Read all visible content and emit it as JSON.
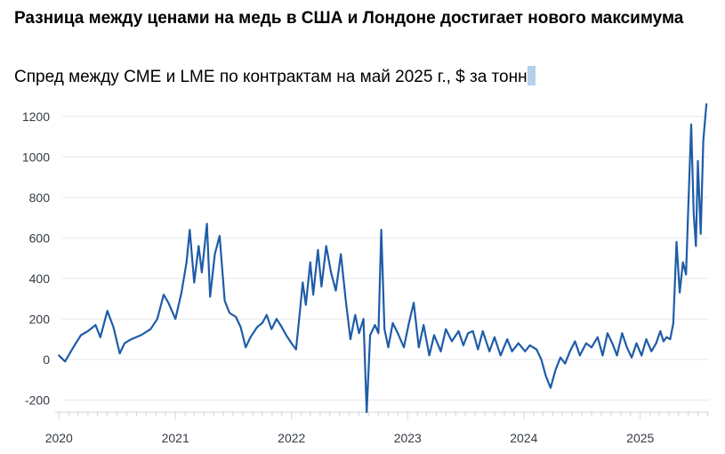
{
  "title": "Разница между ценами на медь в США и Лондоне достигает нового максимума",
  "subtitle": "Спред между CME и LME по контрактам на май 2025 г., $ за тонну",
  "colors": {
    "series": "#1f5ca8",
    "grid": "#e6e8ec",
    "axis": "#cfd5de"
  },
  "chart_data": {
    "type": "line",
    "series": [
      {
        "values": [
          [
            "2020-01-01",
            20
          ],
          [
            "2020-01-20",
            -10
          ],
          [
            "2020-02-15",
            60
          ],
          [
            "2020-03-10",
            120
          ],
          [
            "2020-04-01",
            140
          ],
          [
            "2020-04-25",
            170
          ],
          [
            "2020-05-10",
            110
          ],
          [
            "2020-06-01",
            240
          ],
          [
            "2020-06-20",
            160
          ],
          [
            "2020-07-10",
            30
          ],
          [
            "2020-07-25",
            80
          ],
          [
            "2020-08-15",
            100
          ],
          [
            "2020-09-15",
            120
          ],
          [
            "2020-10-15",
            150
          ],
          [
            "2020-11-05",
            200
          ],
          [
            "2020-11-25",
            320
          ],
          [
            "2020-12-10",
            280
          ],
          [
            "2021-01-01",
            200
          ],
          [
            "2021-01-20",
            330
          ],
          [
            "2021-02-05",
            480
          ],
          [
            "2021-02-15",
            640
          ],
          [
            "2021-03-01",
            380
          ],
          [
            "2021-03-15",
            560
          ],
          [
            "2021-03-25",
            430
          ],
          [
            "2021-04-10",
            670
          ],
          [
            "2021-04-20",
            310
          ],
          [
            "2021-05-05",
            520
          ],
          [
            "2021-05-20",
            610
          ],
          [
            "2021-06-05",
            290
          ],
          [
            "2021-06-20",
            230
          ],
          [
            "2021-07-10",
            210
          ],
          [
            "2021-07-25",
            160
          ],
          [
            "2021-08-10",
            60
          ],
          [
            "2021-08-25",
            110
          ],
          [
            "2021-09-15",
            160
          ],
          [
            "2021-10-01",
            180
          ],
          [
            "2021-10-15",
            220
          ],
          [
            "2021-10-30",
            150
          ],
          [
            "2021-11-15",
            200
          ],
          [
            "2021-12-01",
            160
          ],
          [
            "2021-12-15",
            120
          ],
          [
            "2022-01-01",
            80
          ],
          [
            "2022-01-15",
            50
          ],
          [
            "2022-01-25",
            200
          ],
          [
            "2022-02-05",
            380
          ],
          [
            "2022-02-15",
            270
          ],
          [
            "2022-03-01",
            480
          ],
          [
            "2022-03-10",
            320
          ],
          [
            "2022-03-25",
            540
          ],
          [
            "2022-04-05",
            360
          ],
          [
            "2022-04-20",
            560
          ],
          [
            "2022-05-05",
            430
          ],
          [
            "2022-05-20",
            340
          ],
          [
            "2022-06-05",
            520
          ],
          [
            "2022-06-20",
            300
          ],
          [
            "2022-07-05",
            100
          ],
          [
            "2022-07-20",
            220
          ],
          [
            "2022-08-01",
            130
          ],
          [
            "2022-08-15",
            200
          ],
          [
            "2022-08-25",
            -260
          ],
          [
            "2022-09-05",
            120
          ],
          [
            "2022-09-20",
            170
          ],
          [
            "2022-10-01",
            130
          ],
          [
            "2022-10-10",
            640
          ],
          [
            "2022-10-20",
            150
          ],
          [
            "2022-11-01",
            60
          ],
          [
            "2022-11-15",
            180
          ],
          [
            "2022-12-01",
            130
          ],
          [
            "2022-12-20",
            60
          ],
          [
            "2023-01-05",
            180
          ],
          [
            "2023-01-20",
            280
          ],
          [
            "2023-02-05",
            60
          ],
          [
            "2023-02-20",
            170
          ],
          [
            "2023-03-10",
            20
          ],
          [
            "2023-03-25",
            120
          ],
          [
            "2023-04-15",
            40
          ],
          [
            "2023-05-01",
            150
          ],
          [
            "2023-05-20",
            90
          ],
          [
            "2023-06-10",
            140
          ],
          [
            "2023-06-25",
            70
          ],
          [
            "2023-07-10",
            130
          ],
          [
            "2023-07-25",
            140
          ],
          [
            "2023-08-10",
            50
          ],
          [
            "2023-08-25",
            140
          ],
          [
            "2023-09-15",
            40
          ],
          [
            "2023-10-01",
            110
          ],
          [
            "2023-10-20",
            20
          ],
          [
            "2023-11-10",
            100
          ],
          [
            "2023-11-25",
            40
          ],
          [
            "2023-12-15",
            80
          ],
          [
            "2024-01-05",
            40
          ],
          [
            "2024-01-20",
            70
          ],
          [
            "2024-02-10",
            50
          ],
          [
            "2024-02-25",
            0
          ],
          [
            "2024-03-10",
            -80
          ],
          [
            "2024-03-25",
            -140
          ],
          [
            "2024-04-10",
            -50
          ],
          [
            "2024-04-25",
            10
          ],
          [
            "2024-05-10",
            -20
          ],
          [
            "2024-05-25",
            40
          ],
          [
            "2024-06-10",
            90
          ],
          [
            "2024-06-25",
            20
          ],
          [
            "2024-07-15",
            80
          ],
          [
            "2024-08-01",
            60
          ],
          [
            "2024-08-20",
            110
          ],
          [
            "2024-09-05",
            20
          ],
          [
            "2024-09-20",
            130
          ],
          [
            "2024-10-05",
            80
          ],
          [
            "2024-10-20",
            20
          ],
          [
            "2024-11-05",
            130
          ],
          [
            "2024-11-20",
            60
          ],
          [
            "2024-12-05",
            10
          ],
          [
            "2024-12-20",
            80
          ],
          [
            "2025-01-05",
            20
          ],
          [
            "2025-01-20",
            100
          ],
          [
            "2025-02-05",
            40
          ],
          [
            "2025-02-20",
            80
          ],
          [
            "2025-03-05",
            140
          ],
          [
            "2025-03-15",
            90
          ],
          [
            "2025-03-25",
            110
          ],
          [
            "2025-04-05",
            100
          ],
          [
            "2025-04-15",
            180
          ],
          [
            "2025-04-25",
            580
          ],
          [
            "2025-05-05",
            330
          ],
          [
            "2025-05-15",
            480
          ],
          [
            "2025-05-25",
            420
          ],
          [
            "2025-06-01",
            760
          ],
          [
            "2025-06-10",
            1160
          ],
          [
            "2025-06-18",
            720
          ],
          [
            "2025-06-25",
            560
          ],
          [
            "2025-07-01",
            980
          ],
          [
            "2025-07-10",
            620
          ],
          [
            "2025-07-18",
            1080
          ],
          [
            "2025-07-28",
            1260
          ]
        ]
      }
    ],
    "x_ticks": [
      "2020",
      "2021",
      "2022",
      "2023",
      "2024",
      "2025"
    ],
    "x_tick_dates": [
      "2020-01-01",
      "2021-01-01",
      "2022-01-01",
      "2023-01-01",
      "2024-01-01",
      "2025-01-01"
    ],
    "y_ticks": [
      1200,
      1000,
      800,
      600,
      400,
      200,
      0,
      -200
    ],
    "xlim": [
      "2019-12-20",
      "2025-08-05"
    ],
    "ylim": [
      -260,
      1300
    ],
    "grid": true,
    "legend": "none"
  }
}
